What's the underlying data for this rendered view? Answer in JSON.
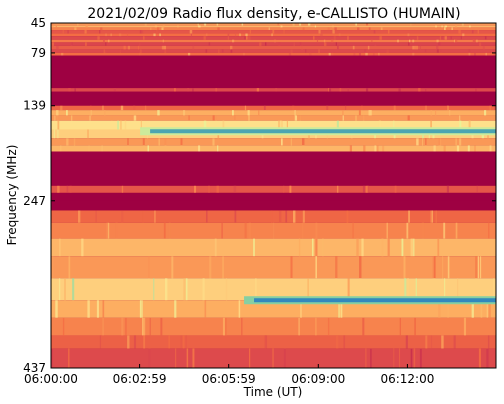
{
  "chart_data": {
    "type": "heatmap",
    "title": "2021/02/09  Radio flux density, e-CALLISTO (HUMAIN)",
    "xlabel": "Time (UT)",
    "ylabel": "Frequency (MHz)",
    "x_ticks": [
      "06:00:00",
      "06:02:59",
      "06:05:59",
      "06:09:00",
      "06:12:00"
    ],
    "y_ticks": [
      "45",
      "79",
      "139",
      "247",
      "437"
    ],
    "x_range": [
      "06:00:00",
      "06:14:59"
    ],
    "y_range": [
      45,
      437
    ],
    "colormap": "Spectral",
    "colors": {
      "background_band": "#9e0142",
      "mid": "#f46d43",
      "high": "#fee08b",
      "peak": "#66c2a5",
      "max": "#3288bd"
    },
    "bands": [
      {
        "f_from": 45,
        "f_to": 48,
        "level": 0.55
      },
      {
        "f_from": 48,
        "f_to": 50,
        "level": 0.62
      },
      {
        "f_from": 50,
        "f_to": 53,
        "level": 0.5
      },
      {
        "f_from": 53,
        "f_to": 57,
        "level": 0.35
      },
      {
        "f_from": 57,
        "f_to": 60,
        "level": 0.45
      },
      {
        "f_from": 60,
        "f_to": 64,
        "level": 0.3
      },
      {
        "f_from": 64,
        "f_to": 67,
        "level": 0.48
      },
      {
        "f_from": 67,
        "f_to": 71,
        "level": 0.28
      },
      {
        "f_from": 71,
        "f_to": 75,
        "level": 0.38
      },
      {
        "f_from": 75,
        "f_to": 79,
        "level": 0.3
      },
      {
        "f_from": 79,
        "f_to": 82,
        "level": 0.45
      },
      {
        "f_from": 82,
        "f_to": 119,
        "level": 0.0
      },
      {
        "f_from": 119,
        "f_to": 123,
        "level": 0.3
      },
      {
        "f_from": 123,
        "f_to": 139,
        "level": 0.0
      },
      {
        "f_from": 139,
        "f_to": 144,
        "level": 0.42
      },
      {
        "f_from": 144,
        "f_to": 150,
        "level": 0.6
      },
      {
        "f_from": 150,
        "f_to": 156,
        "level": 0.55
      },
      {
        "f_from": 156,
        "f_to": 166,
        "level": 0.72
      },
      {
        "f_from": 166,
        "f_to": 176,
        "level": 0.68
      },
      {
        "f_from": 176,
        "f_to": 184,
        "level": 0.55
      },
      {
        "f_from": 184,
        "f_to": 191,
        "level": 0.62
      },
      {
        "f_from": 191,
        "f_to": 200,
        "level": 0.0
      },
      {
        "f_from": 200,
        "f_to": 230,
        "level": 0.0
      },
      {
        "f_from": 230,
        "f_to": 238,
        "level": 0.35
      },
      {
        "f_from": 238,
        "f_to": 247,
        "level": 0.0
      },
      {
        "f_from": 247,
        "f_to": 258,
        "level": 0.0
      },
      {
        "f_from": 258,
        "f_to": 272,
        "level": 0.42
      },
      {
        "f_from": 272,
        "f_to": 290,
        "level": 0.5
      },
      {
        "f_from": 290,
        "f_to": 310,
        "level": 0.62
      },
      {
        "f_from": 310,
        "f_to": 335,
        "level": 0.55
      },
      {
        "f_from": 335,
        "f_to": 360,
        "level": 0.68
      },
      {
        "f_from": 360,
        "f_to": 380,
        "level": 0.6
      },
      {
        "f_from": 380,
        "f_to": 400,
        "level": 0.5
      },
      {
        "f_from": 400,
        "f_to": 415,
        "level": 0.4
      },
      {
        "f_from": 415,
        "f_to": 437,
        "level": 0.3
      }
    ],
    "bursts": [
      {
        "f": 168,
        "t_start": "06:03:00",
        "level": 0.95
      },
      {
        "f": 360,
        "t_start": "06:06:30",
        "level": 1.0
      }
    ]
  }
}
